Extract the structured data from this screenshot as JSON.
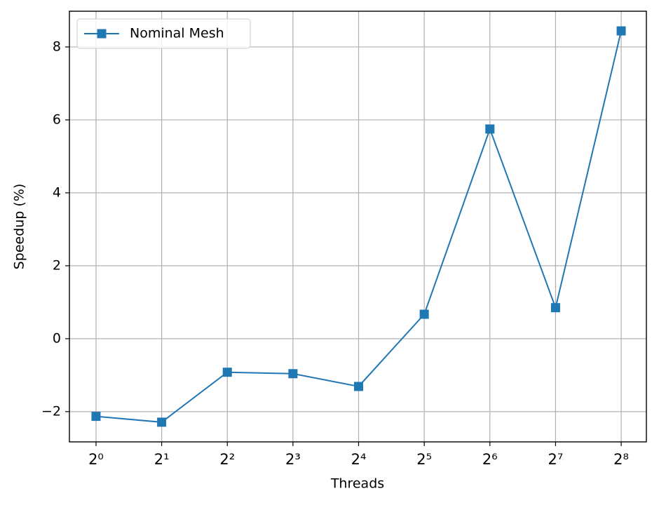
{
  "chart_data": {
    "type": "line",
    "xlabel": "Threads",
    "ylabel": "Speedup (%)",
    "x": [
      1,
      2,
      4,
      8,
      16,
      32,
      64,
      128,
      256
    ],
    "series": [
      {
        "name": "Nominal Mesh",
        "color": "#1f77b4",
        "marker": "square",
        "values": [
          -2.13,
          -2.29,
          -0.92,
          -0.96,
          -1.31,
          0.67,
          5.75,
          0.85,
          8.44
        ]
      }
    ],
    "xscale": "log",
    "xbase": 2,
    "xlim": [
      0.755,
      334
    ],
    "ylim": [
      -2.83,
      8.98
    ],
    "xticks": [
      {
        "value": 1,
        "label": "2⁰"
      },
      {
        "value": 2,
        "label": "2¹"
      },
      {
        "value": 4,
        "label": "2²"
      },
      {
        "value": 8,
        "label": "2³"
      },
      {
        "value": 16,
        "label": "2⁴"
      },
      {
        "value": 32,
        "label": "2⁵"
      },
      {
        "value": 64,
        "label": "2⁶"
      },
      {
        "value": 128,
        "label": "2⁷"
      },
      {
        "value": 256,
        "label": "2⁸"
      }
    ],
    "yticks": [
      {
        "value": -2,
        "label": "−2"
      },
      0,
      2,
      4,
      6,
      8
    ],
    "grid": true,
    "legend": "upper left"
  }
}
